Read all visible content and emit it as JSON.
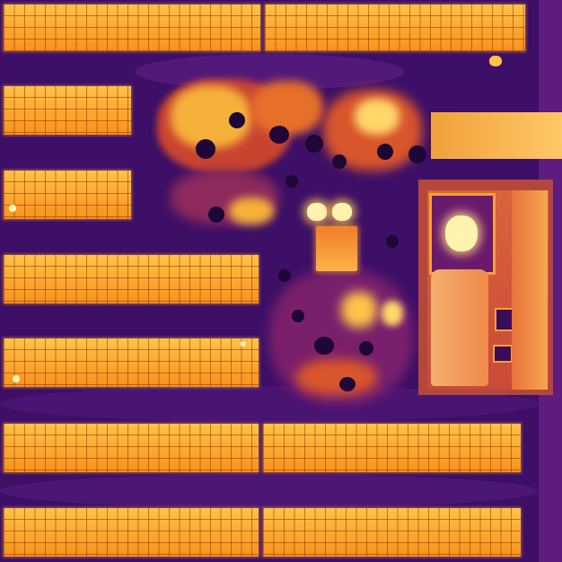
{
  "image": {
    "colormap": "inferno",
    "palette": {
      "background": "#3d0f66",
      "background_dark": "#240843",
      "panel_hot": "#f79a1e",
      "panel_highlight": "#ffc347",
      "hot_spot": "#fff3b0",
      "vegetation_warm": "#ffd76a",
      "tree_cool": "#1e0636"
    },
    "objects": [
      "solar-panel-row",
      "warm-vegetation-patch",
      "tree-canopy",
      "equipment-building",
      "vehicle-hotspot",
      "bare-ground-strip"
    ]
  }
}
